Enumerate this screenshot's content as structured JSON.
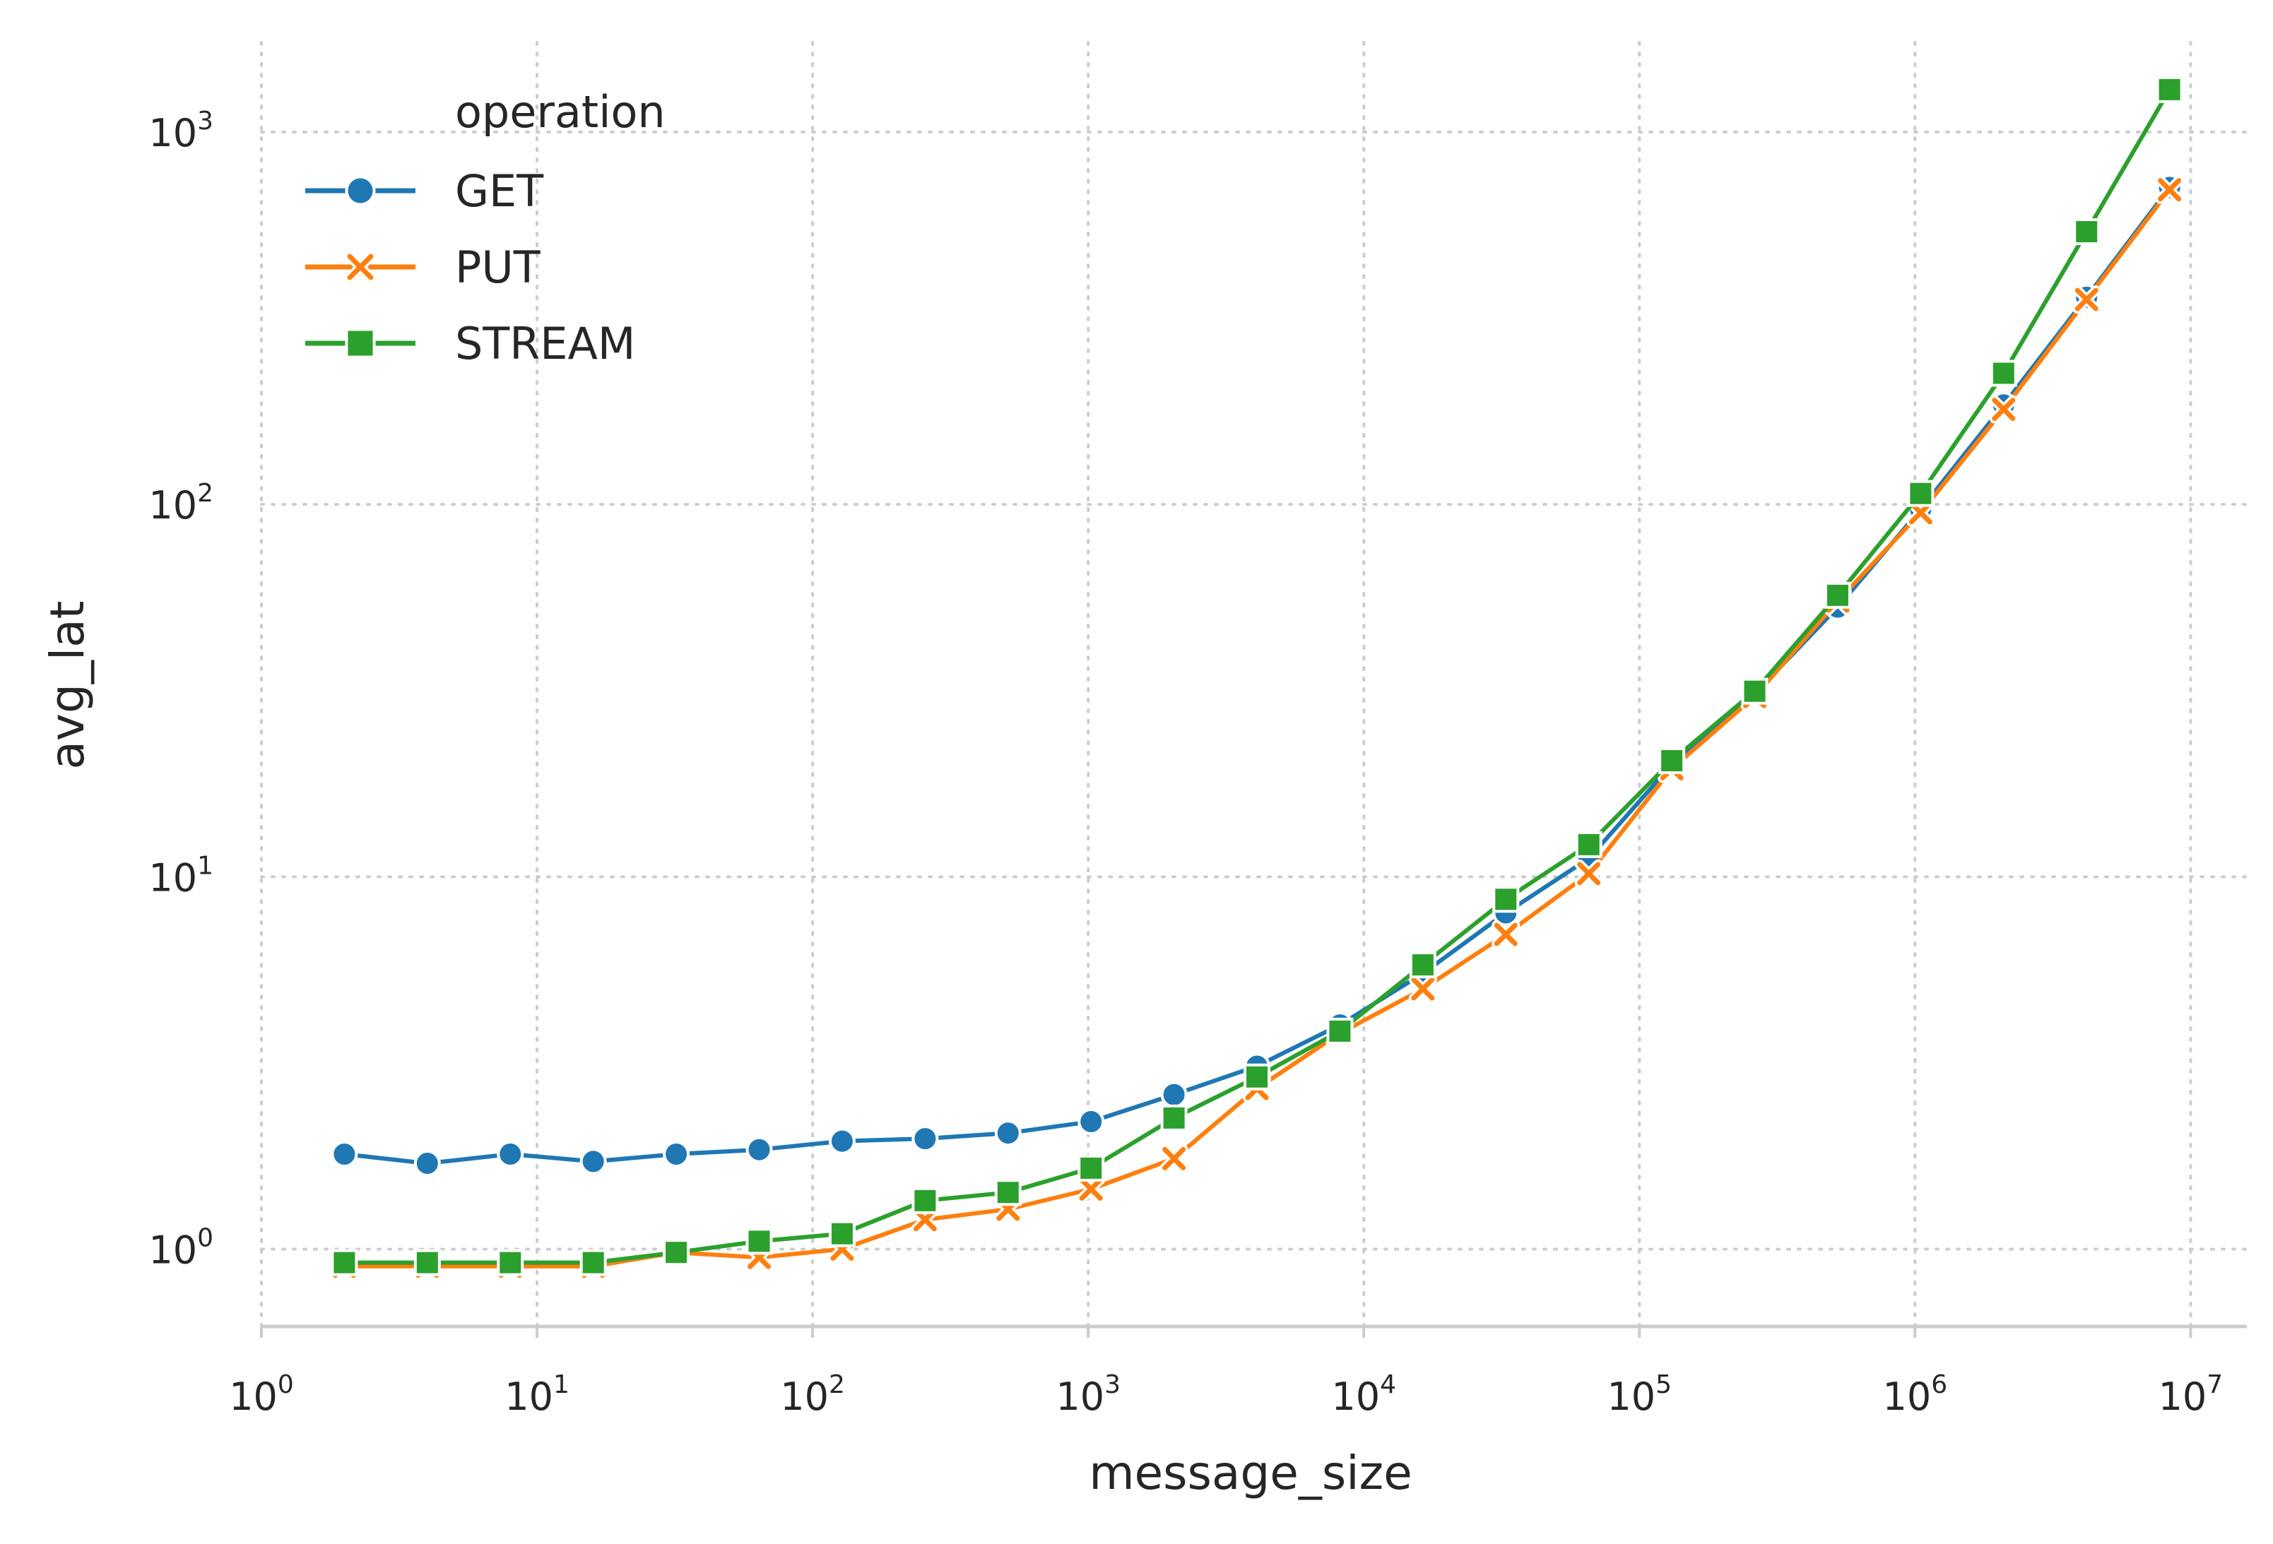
{
  "chart_data": {
    "type": "line",
    "xlabel": "message_size",
    "ylabel": "avg_lat",
    "xscale": "log",
    "yscale": "log",
    "xlim": [
      1,
      16000000
    ],
    "ylim": [
      0.62,
      1900
    ],
    "x_ticks": [
      {
        "base": "10",
        "exp": "0",
        "value": 1
      },
      {
        "base": "10",
        "exp": "1",
        "value": 10
      },
      {
        "base": "10",
        "exp": "2",
        "value": 100
      },
      {
        "base": "10",
        "exp": "3",
        "value": 1000
      },
      {
        "base": "10",
        "exp": "4",
        "value": 10000
      },
      {
        "base": "10",
        "exp": "5",
        "value": 100000
      },
      {
        "base": "10",
        "exp": "6",
        "value": 1000000
      },
      {
        "base": "10",
        "exp": "7",
        "value": 10000000
      }
    ],
    "y_ticks": [
      {
        "base": "10",
        "exp": "0",
        "value": 1
      },
      {
        "base": "10",
        "exp": "1",
        "value": 10
      },
      {
        "base": "10",
        "exp": "2",
        "value": 100
      },
      {
        "base": "10",
        "exp": "3",
        "value": 1000
      }
    ],
    "grid": true,
    "grid_style": "dotted",
    "legend": {
      "title": "operation",
      "placement": "upper-left"
    },
    "x": [
      2,
      4,
      8,
      16,
      32,
      64,
      128,
      256,
      512,
      1024,
      2048,
      4096,
      8192,
      16384,
      32768,
      65536,
      131072,
      262144,
      524288,
      1048576,
      2097152,
      4194304,
      8388608
    ],
    "series": [
      {
        "name": "GET",
        "color": "#1f77b4",
        "marker": "circle",
        "values": [
          1.8,
          1.7,
          1.8,
          1.72,
          1.8,
          1.85,
          1.95,
          1.98,
          2.05,
          2.2,
          2.6,
          3.1,
          4.0,
          5.5,
          8.0,
          11.2,
          20.0,
          31.0,
          53.0,
          97.0,
          185.0,
          360.0,
          710.0
        ]
      },
      {
        "name": "PUT",
        "color": "#ff7f0e",
        "marker": "x",
        "values": [
          0.9,
          0.9,
          0.9,
          0.9,
          0.98,
          0.95,
          1.0,
          1.2,
          1.28,
          1.45,
          1.75,
          2.7,
          3.8,
          5.0,
          7.0,
          10.2,
          19.5,
          30.5,
          55.0,
          95.0,
          180.0,
          355.0,
          700.0
        ]
      },
      {
        "name": "STREAM",
        "color": "#2ca02c",
        "marker": "square",
        "values": [
          0.92,
          0.92,
          0.92,
          0.92,
          0.98,
          1.05,
          1.1,
          1.35,
          1.42,
          1.65,
          2.25,
          2.9,
          3.85,
          5.8,
          8.7,
          12.2,
          20.5,
          31.5,
          57.0,
          107.0,
          225.0,
          540.0,
          1300.0
        ]
      }
    ]
  }
}
